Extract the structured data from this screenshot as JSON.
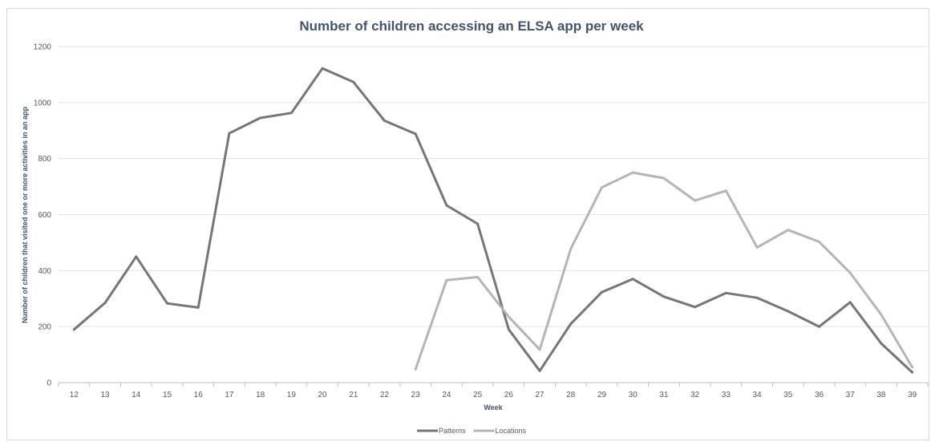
{
  "chart_data": {
    "type": "line",
    "title": "Number of children accessing an ELSA app per week",
    "xlabel": "Week",
    "ylabel": "Number of children that visited one or more activities in an app",
    "categories": [
      "12",
      "13",
      "14",
      "15",
      "16",
      "17",
      "18",
      "19",
      "20",
      "21",
      "22",
      "23",
      "24",
      "25",
      "26",
      "27",
      "28",
      "29",
      "30",
      "31",
      "32",
      "33",
      "34",
      "35",
      "36",
      "37",
      "38",
      "39"
    ],
    "ylim": [
      0,
      1200
    ],
    "yticks": [
      "0",
      "200",
      "400",
      "600",
      "800",
      "1000",
      "1200"
    ],
    "grid": true,
    "legend_position": "bottom",
    "series": [
      {
        "name": "Patterns",
        "color": "#767676",
        "values": [
          190,
          285,
          450,
          283,
          268,
          890,
          945,
          963,
          1122,
          1073,
          935,
          888,
          633,
          567,
          190,
          42,
          210,
          323,
          370,
          307,
          270,
          320,
          303,
          255,
          200,
          287,
          140,
          37
        ]
      },
      {
        "name": "Locations",
        "color": "#b5b5b5",
        "values": [
          null,
          null,
          null,
          null,
          null,
          null,
          null,
          null,
          null,
          null,
          null,
          48,
          366,
          377,
          235,
          118,
          478,
          697,
          750,
          730,
          650,
          685,
          483,
          545,
          503,
          392,
          243,
          55
        ]
      }
    ]
  }
}
